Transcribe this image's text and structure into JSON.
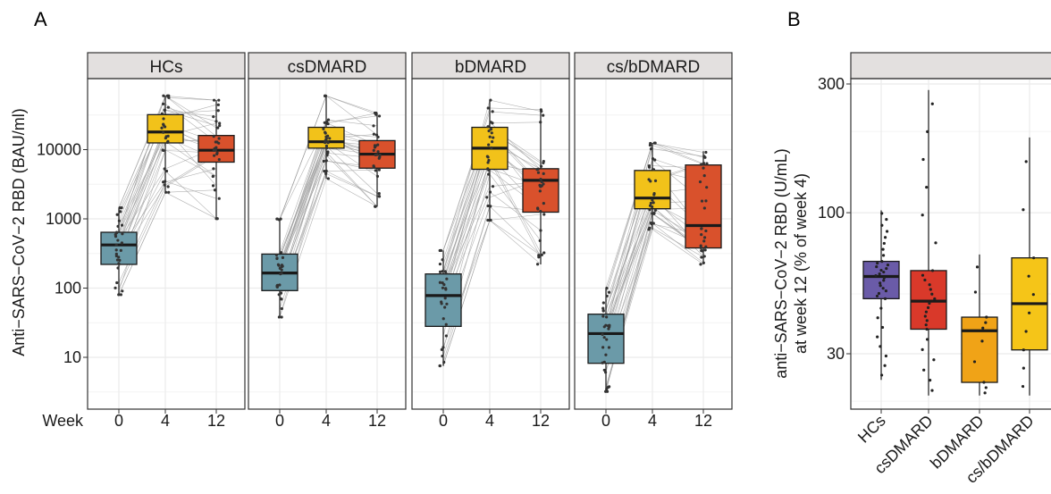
{
  "panel_a": {
    "letter": "A",
    "ylabel": "Anti−SARS−CoV−2 RBD (BAU/ml)",
    "xlabel_prefix": "Week",
    "y_scale": "log10",
    "y_ticks": [
      "10",
      "100",
      "1000",
      "10000"
    ],
    "y_tick_values": [
      10,
      100,
      1000,
      10000
    ],
    "x_ticks": [
      "0",
      "4",
      "12"
    ]
  },
  "panel_b": {
    "letter": "B",
    "ylabel_line1": "anti−SARS−CoV−2 RBD (U/mL)",
    "ylabel_line2": "at week 12 (% of week 4)",
    "y_scale": "log10",
    "y_ticks": [
      "30",
      "100",
      "300"
    ],
    "y_tick_values": [
      30,
      100,
      300
    ]
  },
  "colors": {
    "week0": "#6b9aa8",
    "week4": "#f2c21a",
    "week12": "#d9512c",
    "hcs": "#6a5ba8",
    "csdmard": "#d9392a",
    "bdmard": "#f0a317",
    "csbdmard": "#f5c518",
    "strip": "#e3e0df",
    "grid": "#ebebeb"
  },
  "chart_data": [
    {
      "type": "box",
      "panel": "A",
      "facets": [
        {
          "name": "HCs",
          "boxes": [
            {
              "week": "0",
              "q1": 220,
              "median": 420,
              "q3": 640,
              "lo": 80,
              "hi": 1450
            },
            {
              "week": "4",
              "q1": 12500,
              "median": 18000,
              "q3": 32000,
              "lo": 2400,
              "hi": 60000
            },
            {
              "week": "12",
              "q1": 6600,
              "median": 9800,
              "q3": 16000,
              "lo": 1000,
              "hi": 52000
            }
          ]
        },
        {
          "name": "csDMARD",
          "boxes": [
            {
              "week": "0",
              "q1": 92,
              "median": 165,
              "q3": 310,
              "lo": 38,
              "hi": 1000
            },
            {
              "week": "4",
              "q1": 10500,
              "median": 13000,
              "q3": 21000,
              "lo": 3800,
              "hi": 60000
            },
            {
              "week": "12",
              "q1": 5400,
              "median": 8600,
              "q3": 13500,
              "lo": 1500,
              "hi": 34000
            }
          ]
        },
        {
          "name": "bDMARD",
          "boxes": [
            {
              "week": "0",
              "q1": 28,
              "median": 78,
              "q3": 160,
              "lo": 7.5,
              "hi": 350
            },
            {
              "week": "4",
              "q1": 5200,
              "median": 10500,
              "q3": 21000,
              "lo": 950,
              "hi": 52000
            },
            {
              "week": "12",
              "q1": 1250,
              "median": 3600,
              "q3": 5300,
              "lo": 220,
              "hi": 38000
            }
          ]
        },
        {
          "name": "cs/bDMARD",
          "boxes": [
            {
              "week": "0",
              "q1": 8.2,
              "median": 22,
              "q3": 42,
              "lo": 3.2,
              "hi": 100
            },
            {
              "week": "4",
              "q1": 1400,
              "median": 2000,
              "q3": 5000,
              "lo": 700,
              "hi": 12500
            },
            {
              "week": "12",
              "q1": 380,
              "median": 800,
              "q3": 6000,
              "lo": 220,
              "hi": 9500
            }
          ]
        }
      ]
    },
    {
      "type": "box",
      "panel": "B",
      "categories": [
        "HCs",
        "csDMARD",
        "bDMARD",
        "cs/bDMARD"
      ],
      "boxes": [
        {
          "name": "HCs",
          "q1": 48,
          "median": 58,
          "q3": 66,
          "lo": 24,
          "hi": 102
        },
        {
          "name": "csDMARD",
          "q1": 37,
          "median": 47,
          "q3": 61,
          "lo": 21,
          "hi": 285
        },
        {
          "name": "bDMARD",
          "q1": 23.5,
          "median": 36.5,
          "q3": 41,
          "lo": 21,
          "hi": 70
        },
        {
          "name": "cs/bDMARD",
          "q1": 31,
          "median": 46,
          "q3": 68,
          "lo": 21,
          "hi": 190
        }
      ]
    }
  ]
}
